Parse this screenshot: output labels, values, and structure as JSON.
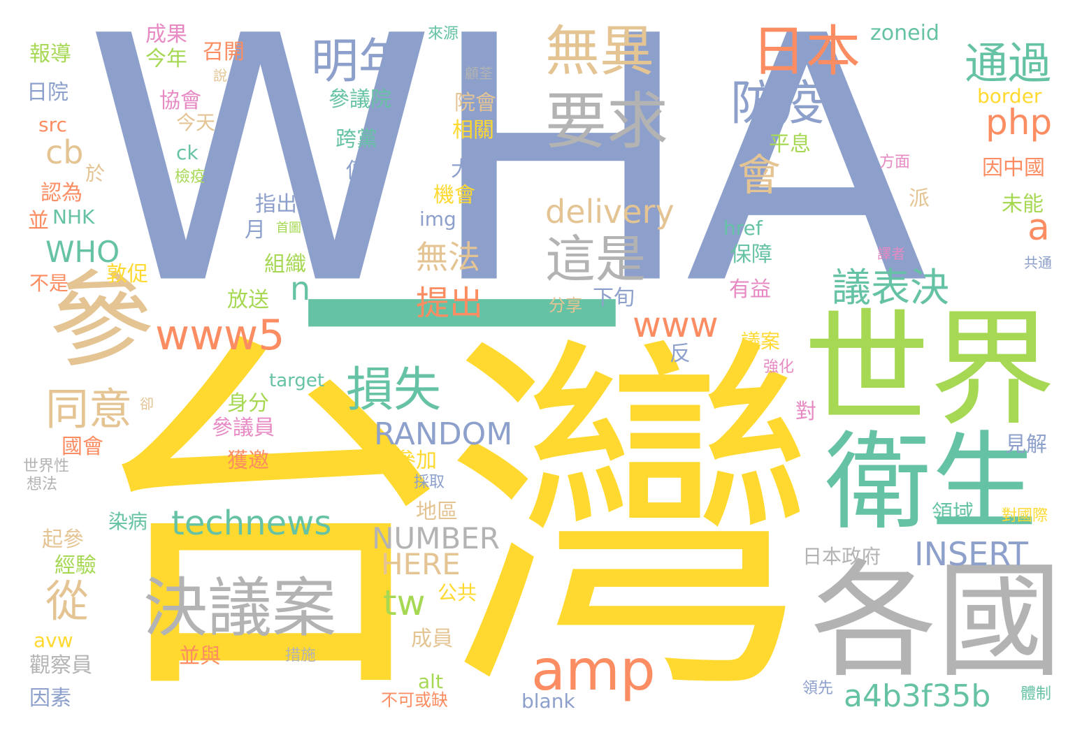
{
  "palette": {
    "blue": "#8DA0CB",
    "yellow": "#FFD92F",
    "teal": "#66C2A5",
    "green": "#A6D854",
    "orange": "#FC8D62",
    "tan": "#E5C494",
    "gray": "#B3B3B3",
    "pink": "#E78AC3"
  },
  "words": [
    {
      "text": "WHA",
      "color": "blue"
    },
    {
      "text": "一",
      "color": "teal"
    },
    {
      "text": "台灣",
      "color": "yellow"
    },
    {
      "text": "世界",
      "color": "green"
    },
    {
      "text": "衛生",
      "color": "teal"
    },
    {
      "text": "各國",
      "color": "gray"
    },
    {
      "text": "參",
      "color": "tan"
    },
    {
      "text": "決議案",
      "color": "gray"
    },
    {
      "text": "要求",
      "color": "gray"
    },
    {
      "text": "無異",
      "color": "tan"
    },
    {
      "text": "日本",
      "color": "orange"
    },
    {
      "text": "明年",
      "color": "blue"
    },
    {
      "text": "防疫",
      "color": "blue"
    },
    {
      "text": "通過",
      "color": "teal"
    },
    {
      "text": "會",
      "color": "tan"
    },
    {
      "text": "這是",
      "color": "gray"
    },
    {
      "text": "delivery",
      "color": "tan"
    },
    {
      "text": "php",
      "color": "orange"
    },
    {
      "text": "a",
      "color": "orange"
    },
    {
      "text": "議表決",
      "color": "teal"
    },
    {
      "text": "www5",
      "color": "orange"
    },
    {
      "text": "www",
      "color": "orange"
    },
    {
      "text": "損失",
      "color": "teal"
    },
    {
      "text": "同意",
      "color": "tan"
    },
    {
      "text": "cb",
      "color": "tan"
    },
    {
      "text": "WHO",
      "color": "teal"
    },
    {
      "text": "n",
      "color": "teal"
    },
    {
      "text": "無法",
      "color": "tan"
    },
    {
      "text": "提出",
      "color": "orange"
    },
    {
      "text": "RANDOM",
      "color": "blue"
    },
    {
      "text": "technews",
      "color": "teal"
    },
    {
      "text": "從",
      "color": "tan"
    },
    {
      "text": "amp",
      "color": "orange"
    },
    {
      "text": "NUMBER",
      "color": "gray"
    },
    {
      "text": "HERE",
      "color": "tan"
    },
    {
      "text": "tw",
      "color": "green"
    },
    {
      "text": "INSERT",
      "color": "blue"
    },
    {
      "text": "a4b3f35b",
      "color": "teal"
    },
    {
      "text": "成果",
      "color": "pink"
    },
    {
      "text": "來源",
      "color": "teal"
    },
    {
      "text": "zoneid",
      "color": "teal"
    },
    {
      "text": "報導",
      "color": "green"
    },
    {
      "text": "召開",
      "color": "orange"
    },
    {
      "text": "今年",
      "color": "green"
    },
    {
      "text": "說",
      "color": "tan"
    },
    {
      "text": "顧荃",
      "color": "gray"
    },
    {
      "text": "日院",
      "color": "blue"
    },
    {
      "text": "參議院",
      "color": "teal"
    },
    {
      "text": "協會",
      "color": "pink"
    },
    {
      "text": "院會",
      "color": "tan"
    },
    {
      "text": "border",
      "color": "yellow"
    },
    {
      "text": "src",
      "color": "orange"
    },
    {
      "text": "今天",
      "color": "tan"
    },
    {
      "text": "相關",
      "color": "yellow"
    },
    {
      "text": "跨黨",
      "color": "teal"
    },
    {
      "text": "平息",
      "color": "green"
    },
    {
      "text": "ck",
      "color": "teal"
    },
    {
      "text": "方面",
      "color": "pink"
    },
    {
      "text": "因中國",
      "color": "orange"
    },
    {
      "text": "於",
      "color": "tan"
    },
    {
      "text": "檢疫",
      "color": "green"
    },
    {
      "text": "傳",
      "color": "blue"
    },
    {
      "text": "大會",
      "color": "blue"
    },
    {
      "text": "認為",
      "color": "orange"
    },
    {
      "text": "機會",
      "color": "yellow"
    },
    {
      "text": "派",
      "color": "tan"
    },
    {
      "text": "未能",
      "color": "green"
    },
    {
      "text": "指出",
      "color": "blue"
    },
    {
      "text": "並",
      "color": "orange"
    },
    {
      "text": "NHK",
      "color": "teal"
    },
    {
      "text": "首圖",
      "color": "green"
    },
    {
      "text": "img",
      "color": "blue"
    },
    {
      "text": "href",
      "color": "teal"
    },
    {
      "text": "月",
      "color": "blue"
    },
    {
      "text": "保障",
      "color": "teal"
    },
    {
      "text": "譯者",
      "color": "pink"
    },
    {
      "text": "共通",
      "color": "blue"
    },
    {
      "text": "組織",
      "color": "green"
    },
    {
      "text": "敦促",
      "color": "yellow"
    },
    {
      "text": "不是",
      "color": "orange"
    },
    {
      "text": "放送",
      "color": "green"
    },
    {
      "text": "下旬",
      "color": "blue"
    },
    {
      "text": "分享",
      "color": "tan"
    },
    {
      "text": "有益",
      "color": "pink"
    },
    {
      "text": "議案",
      "color": "yellow"
    },
    {
      "text": "反",
      "color": "blue"
    },
    {
      "text": "強化",
      "color": "pink"
    },
    {
      "text": "target",
      "color": "teal"
    },
    {
      "text": "卻",
      "color": "tan"
    },
    {
      "text": "身分",
      "color": "green"
    },
    {
      "text": "對",
      "color": "pink"
    },
    {
      "text": "參議員",
      "color": "pink"
    },
    {
      "text": "國會",
      "color": "orange"
    },
    {
      "text": "見解",
      "color": "blue"
    },
    {
      "text": "獲邀",
      "color": "orange"
    },
    {
      "text": "參加",
      "color": "yellow"
    },
    {
      "text": "世界性",
      "color": "gray"
    },
    {
      "text": "想法",
      "color": "gray"
    },
    {
      "text": "採取",
      "color": "blue"
    },
    {
      "text": "領域",
      "color": "teal"
    },
    {
      "text": "對國際",
      "color": "yellow"
    },
    {
      "text": "地區",
      "color": "tan"
    },
    {
      "text": "染病",
      "color": "teal"
    },
    {
      "text": "起參",
      "color": "tan"
    },
    {
      "text": "日本政府",
      "color": "gray"
    },
    {
      "text": "經驗",
      "color": "green"
    },
    {
      "text": "公共",
      "color": "yellow"
    },
    {
      "text": "avw",
      "color": "yellow"
    },
    {
      "text": "成員",
      "color": "tan"
    },
    {
      "text": "並與",
      "color": "orange"
    },
    {
      "text": "措施",
      "color": "gray"
    },
    {
      "text": "觀察員",
      "color": "gray"
    },
    {
      "text": "alt",
      "color": "green"
    },
    {
      "text": "因素",
      "color": "blue"
    },
    {
      "text": "不可或缺",
      "color": "orange"
    },
    {
      "text": "blank",
      "color": "blue"
    },
    {
      "text": "領先",
      "color": "blue"
    },
    {
      "text": "體制",
      "color": "teal"
    }
  ]
}
